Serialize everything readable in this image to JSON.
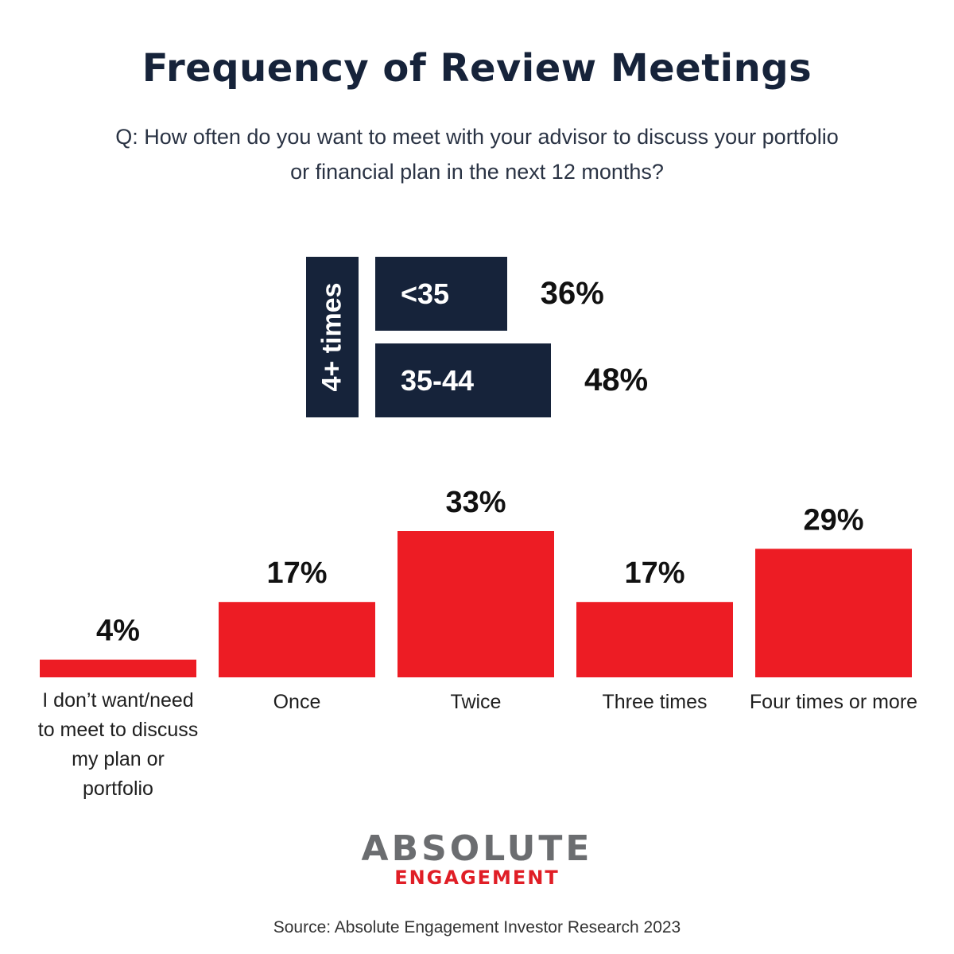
{
  "title": "Frequency of Review Meetings",
  "subtitle": "Q: How often do you want to meet with your advisor to discuss your portfolio or financial plan in the next 12 months?",
  "inset": {
    "side_label": "4+ times",
    "rows": [
      {
        "label": "<35",
        "value": 36,
        "value_label": "36%"
      },
      {
        "label": "35-44",
        "value": 48,
        "value_label": "48%"
      }
    ],
    "color": "#16233a"
  },
  "chart_data": {
    "type": "bar",
    "categories": [
      "I don’t want/need to meet to discuss my plan or portfolio",
      "Once",
      "Twice",
      "Three times",
      "Four times or more"
    ],
    "values": [
      4,
      17,
      33,
      17,
      29
    ],
    "data_labels": [
      "4%",
      "17%",
      "33%",
      "17%",
      "29%"
    ],
    "bar_color": "#ed1c24",
    "title": "",
    "xlabel": "",
    "ylabel": "",
    "ylim": [
      0,
      33
    ],
    "grid": false
  },
  "logo": {
    "line1": "ABSOLUTE",
    "line2": "ENGAGEMENT",
    "accent": "#e01e26"
  },
  "source": "Source: Absolute Engagement Investor Research 2023"
}
